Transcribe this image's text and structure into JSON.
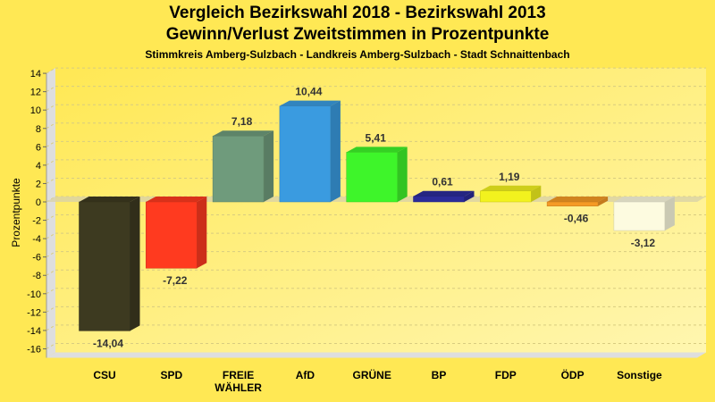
{
  "chart_data": {
    "type": "bar",
    "title": "Vergleich Bezirkswahl 2018 - Bezirkswahl 2013",
    "title2": "Gewinn/Verlust Zweitstimmen in Prozentpunkte",
    "subtitle": "Stimmkreis Amberg-Sulzbach - Landkreis Amberg-Sulzbach - Stadt Schnaittenbach",
    "xlabel": "",
    "ylabel": "Prozentpunkte",
    "ylim": [
      -16,
      14
    ],
    "yticks": [
      14,
      12,
      10,
      8,
      6,
      4,
      2,
      0,
      -2,
      -4,
      -6,
      -8,
      -10,
      -12,
      -14,
      -16
    ],
    "grid": true,
    "categories": [
      "CSU",
      "SPD",
      "FREIE WÄHLER",
      "AfD",
      "GRÜNE",
      "BP",
      "FDP",
      "ÖDP",
      "Sonstige"
    ],
    "values": [
      -14.04,
      -7.22,
      7.18,
      10.44,
      5.41,
      0.61,
      1.19,
      -0.46,
      -3.12
    ],
    "labels": [
      "-14,04",
      "-7,22",
      "7,18",
      "10,44",
      "5,41",
      "0,61",
      "1,19",
      "-0,46",
      "-3,12"
    ],
    "colors": [
      "#3d3a20",
      "#ff3a1f",
      "#6f9b7c",
      "#3a9be0",
      "#3ef52a",
      "#2b2b99",
      "#f2f21e",
      "#f59a25",
      "#fdfbe0"
    ]
  }
}
